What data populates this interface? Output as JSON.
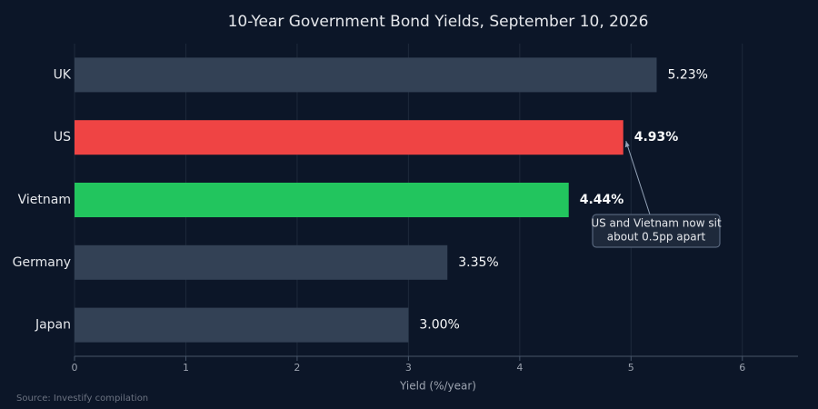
{
  "chart_data": {
    "type": "hbar",
    "title": "10-Year Government Bond Yields, September 10, 2026",
    "categories": [
      "UK",
      "US",
      "Vietnam",
      "Germany",
      "Japan"
    ],
    "values": [
      5.23,
      4.93,
      4.44,
      3.35,
      3.0
    ],
    "value_labels": [
      "5.23%",
      "4.93%",
      "4.44%",
      "3.35%",
      "3.00%"
    ],
    "colors": [
      "#334155",
      "#ef4444",
      "#22c55e",
      "#334155",
      "#334155"
    ],
    "bold_values": [
      false,
      true,
      true,
      false,
      false
    ],
    "xlim": [
      0,
      6.5
    ],
    "xticks": [
      0,
      1,
      2,
      3,
      4,
      5,
      6
    ],
    "grid": true,
    "xlabel": "Yield (%/year)",
    "annotation": [
      "US and Vietnam now sit",
      "about 0.5pp apart"
    ],
    "source": "Source: Investify compilation"
  }
}
